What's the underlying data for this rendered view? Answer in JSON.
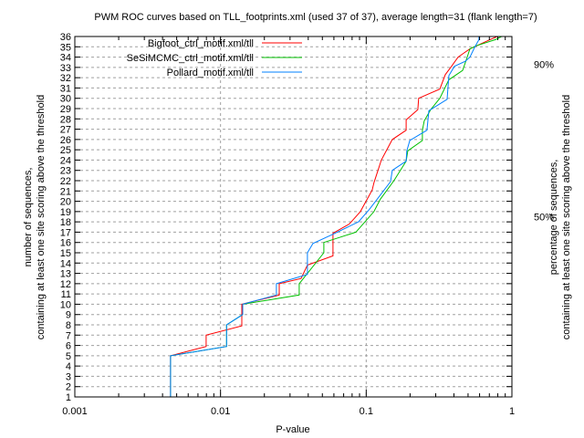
{
  "chart_data": {
    "type": "line",
    "title": "PWM ROC curves based on TLL_footprints.xml (used 37 of 37), average length=31 (flank length=7)",
    "xlabel": "P-value",
    "ylabel_line1": "number of sequences,",
    "ylabel_line2": "containing at least one site scoring above the threshold",
    "y2label_line1": "percentage of sequences,",
    "y2label_line2": "containing at least one site scoring above the threshold",
    "xscale": "log",
    "xlim": [
      0.001,
      1
    ],
    "ylim": [
      1,
      36
    ],
    "xticks": [
      0.001,
      0.01,
      0.1,
      1
    ],
    "xtick_labels": [
      "0.001",
      "0.01",
      "0.1",
      "1"
    ],
    "yticks": [
      1,
      2,
      3,
      4,
      5,
      6,
      7,
      8,
      9,
      10,
      11,
      12,
      13,
      14,
      15,
      16,
      17,
      18,
      19,
      20,
      21,
      22,
      23,
      24,
      25,
      26,
      27,
      28,
      29,
      30,
      31,
      32,
      33,
      34,
      35,
      36
    ],
    "total_sequences": 37,
    "y2ticks": [
      {
        "percent": 50,
        "label": "50%"
      },
      {
        "percent": 90,
        "label": "90%"
      }
    ],
    "grid": true,
    "legend_position": "top-left",
    "series": [
      {
        "name": "Bigfoot_ctrl_motif.xml/tll",
        "color": "#ff0000",
        "points": [
          [
            0.00454,
            1
          ],
          [
            0.00454,
            5
          ],
          [
            0.00797,
            5.9
          ],
          [
            0.00797,
            7
          ],
          [
            0.014,
            7.9
          ],
          [
            0.014,
            10
          ],
          [
            0.0253,
            10.9
          ],
          [
            0.0253,
            12
          ],
          [
            0.0357,
            12.5
          ],
          [
            0.0395,
            13.8
          ],
          [
            0.0591,
            14.7
          ],
          [
            0.0591,
            16.9
          ],
          [
            0.0767,
            17.8
          ],
          [
            0.0912,
            19
          ],
          [
            0.098,
            19.8
          ],
          [
            0.11,
            21.1
          ],
          [
            0.113,
            21.8
          ],
          [
            0.127,
            24
          ],
          [
            0.151,
            26
          ],
          [
            0.188,
            26.9
          ],
          [
            0.188,
            27.9
          ],
          [
            0.226,
            28.9
          ],
          [
            0.229,
            30
          ],
          [
            0.32,
            30.9
          ],
          [
            0.349,
            32.3
          ],
          [
            0.385,
            33.1
          ],
          [
            0.427,
            34
          ],
          [
            0.515,
            34.8
          ],
          [
            0.707,
            35.7
          ],
          [
            0.793,
            36
          ]
        ]
      },
      {
        "name": "SeSiMCMC_ctrl_motif.xml/tll",
        "color": "#00c000",
        "points": [
          [
            0.00454,
            1
          ],
          [
            0.00454,
            5
          ],
          [
            0.011,
            5.9
          ],
          [
            0.011,
            8
          ],
          [
            0.0142,
            9
          ],
          [
            0.0142,
            10
          ],
          [
            0.0347,
            10.9
          ],
          [
            0.0347,
            12
          ],
          [
            0.0512,
            15
          ],
          [
            0.0512,
            16
          ],
          [
            0.0849,
            17
          ],
          [
            0.113,
            19
          ],
          [
            0.125,
            20.2
          ],
          [
            0.155,
            22
          ],
          [
            0.188,
            23.9
          ],
          [
            0.193,
            24.9
          ],
          [
            0.243,
            25.9
          ],
          [
            0.243,
            26.9
          ],
          [
            0.25,
            27.8
          ],
          [
            0.277,
            28.9
          ],
          [
            0.32,
            30
          ],
          [
            0.369,
            31.8
          ],
          [
            0.459,
            32.7
          ],
          [
            0.493,
            34
          ],
          [
            0.515,
            34.8
          ],
          [
            0.569,
            35.1
          ],
          [
            0.771,
            35.7
          ],
          [
            0.85,
            36
          ]
        ]
      },
      {
        "name": "Pollard_motif.xml/tll",
        "color": "#0080ff",
        "points": [
          [
            0.00454,
            1
          ],
          [
            0.00454,
            5
          ],
          [
            0.011,
            5.9
          ],
          [
            0.011,
            8
          ],
          [
            0.0142,
            9
          ],
          [
            0.0142,
            10
          ],
          [
            0.0242,
            10.9
          ],
          [
            0.0242,
            12
          ],
          [
            0.0395,
            12.9
          ],
          [
            0.0395,
            15
          ],
          [
            0.0431,
            15.9
          ],
          [
            0.0591,
            16.8
          ],
          [
            0.0885,
            18
          ],
          [
            0.105,
            19.2
          ],
          [
            0.116,
            20
          ],
          [
            0.147,
            21.9
          ],
          [
            0.151,
            23
          ],
          [
            0.188,
            23.9
          ],
          [
            0.19,
            24.9
          ],
          [
            0.199,
            25.9
          ],
          [
            0.261,
            26.9
          ],
          [
            0.269,
            28.8
          ],
          [
            0.359,
            29.9
          ],
          [
            0.369,
            32.2
          ],
          [
            0.403,
            33.1
          ],
          [
            0.479,
            33.6
          ],
          [
            0.515,
            34
          ],
          [
            0.553,
            34.9
          ],
          [
            0.594,
            35.7
          ],
          [
            0.594,
            36
          ]
        ]
      }
    ]
  }
}
